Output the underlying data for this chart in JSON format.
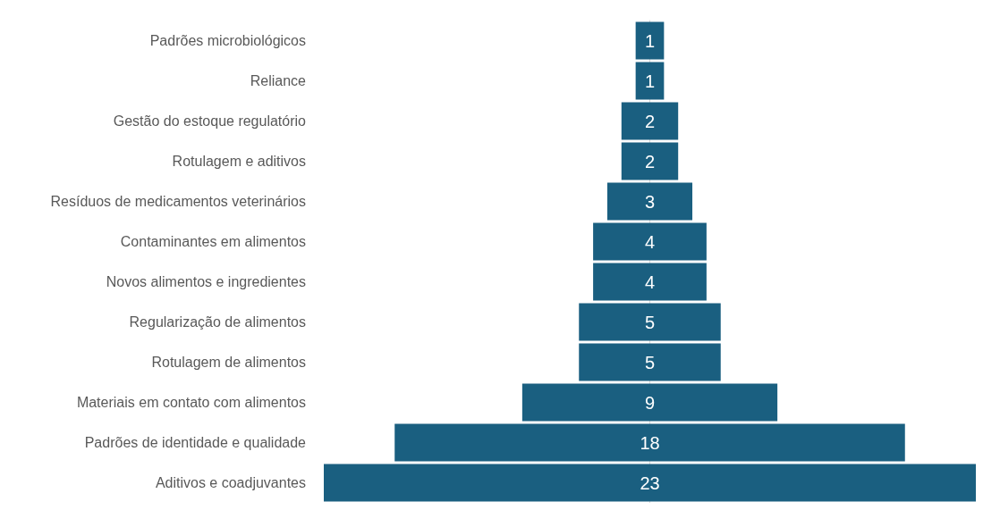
{
  "chart_data": {
    "type": "other",
    "categories": [
      "Padrões microbiológicos",
      "Reliance",
      "Gestão do estoque regulatório",
      "Rotulagem e aditivos",
      "Resíduos de medicamentos veterinários",
      "Contaminantes em alimentos",
      "Novos alimentos e ingredientes",
      "Regularização de alimentos",
      "Rotulagem de alimentos",
      "Materiais em contato com alimentos",
      "Padrões de identidade e qualidade",
      "Aditivos e coadjuvantes"
    ],
    "values": [
      1,
      1,
      2,
      2,
      3,
      4,
      4,
      5,
      5,
      9,
      18,
      23
    ],
    "color": "#1a5f80",
    "data_labels": true
  }
}
